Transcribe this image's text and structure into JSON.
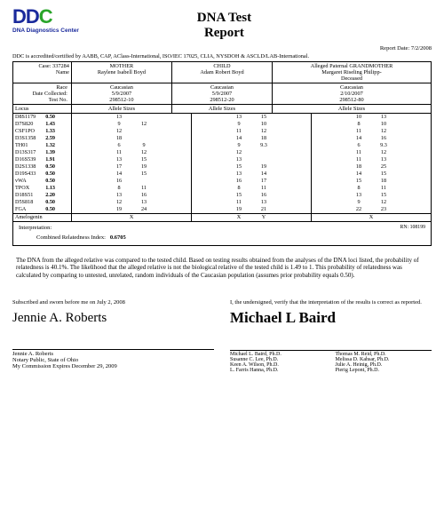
{
  "logo": {
    "d": "D",
    "c": "C",
    "sub": "DNA Diagnostics Center"
  },
  "title1": "DNA Test",
  "title2": "Report",
  "report_date_label": "Report Date:",
  "report_date": "7/2/2008",
  "accreditation": "DDC is accredited/certified by AABB, CAP, AClass-International, ISO/IEC 17025, CLIA, NYSDOH & ASCLD/LAB-International.",
  "case_label": "Case:",
  "case_no": "337284",
  "name_label": "Name",
  "parties": {
    "mother": {
      "role": "MOTHER",
      "name": "Raylene Isabell Boyd",
      "race": "Caucasian",
      "date": "5/9/2007",
      "test": "298512-10"
    },
    "child": {
      "role": "CHILD",
      "name": "Adam Robert Boyd",
      "race": "Caucasian",
      "date": "5/9/2007",
      "test": "298512-20"
    },
    "alleged": {
      "role": "Alleged Paternal GRANDMOTHER",
      "name": "Margaret Riseling Philipp-",
      "name2": "Deceased",
      "race": "Caucasian",
      "date": "2/10/2007",
      "test": "298512-80"
    }
  },
  "race_label": "Race",
  "date_label": "Date Collected:",
  "testno_label": "Test No.",
  "locus_label": "Locus",
  "allele_label": "Allele Sizes",
  "rows": [
    {
      "locus": "D8S1179",
      "pi": "0.50",
      "m": [
        "13",
        ""
      ],
      "c": [
        "13",
        "15"
      ],
      "a": [
        "10",
        "13"
      ]
    },
    {
      "locus": "D7S820",
      "pi": "1.43",
      "m": [
        "9",
        "12"
      ],
      "c": [
        "9",
        "10"
      ],
      "a": [
        "8",
        "10"
      ]
    },
    {
      "locus": "CSF1PO",
      "pi": "1.33",
      "m": [
        "12",
        ""
      ],
      "c": [
        "11",
        "12"
      ],
      "a": [
        "11",
        "12"
      ]
    },
    {
      "locus": "D3S1358",
      "pi": "2.59",
      "m": [
        "18",
        ""
      ],
      "c": [
        "14",
        "18"
      ],
      "a": [
        "14",
        "16"
      ]
    },
    {
      "locus": "TH01",
      "pi": "1.32",
      "m": [
        "6",
        "9"
      ],
      "c": [
        "9",
        "9.3"
      ],
      "a": [
        "6",
        "9.3"
      ]
    },
    {
      "locus": "D13S317",
      "pi": "1.39",
      "m": [
        "11",
        "12"
      ],
      "c": [
        "12",
        ""
      ],
      "a": [
        "11",
        "12"
      ]
    },
    {
      "locus": "D16S539",
      "pi": "1.91",
      "m": [
        "13",
        "15"
      ],
      "c": [
        "13",
        ""
      ],
      "a": [
        "11",
        "13"
      ]
    },
    {
      "locus": "D2S1338",
      "pi": "0.50",
      "m": [
        "17",
        "19"
      ],
      "c": [
        "15",
        "19"
      ],
      "a": [
        "18",
        "25"
      ]
    },
    {
      "locus": "D19S433",
      "pi": "0.50",
      "m": [
        "14",
        "15"
      ],
      "c": [
        "13",
        "14"
      ],
      "a": [
        "14",
        "15"
      ]
    },
    {
      "locus": "vWA",
      "pi": "0.50",
      "m": [
        "16",
        ""
      ],
      "c": [
        "16",
        "17"
      ],
      "a": [
        "15",
        "18"
      ]
    },
    {
      "locus": "TPOX",
      "pi": "1.13",
      "m": [
        "8",
        "11"
      ],
      "c": [
        "8",
        "11"
      ],
      "a": [
        "8",
        "11"
      ]
    },
    {
      "locus": "D18S51",
      "pi": "2.20",
      "m": [
        "13",
        "16"
      ],
      "c": [
        "15",
        "16"
      ],
      "a": [
        "13",
        "15"
      ]
    },
    {
      "locus": "D5S818",
      "pi": "0.50",
      "m": [
        "12",
        "13"
      ],
      "c": [
        "11",
        "13"
      ],
      "a": [
        "9",
        "12"
      ]
    },
    {
      "locus": "FGA",
      "pi": "0.50",
      "m": [
        "19",
        "24"
      ],
      "c": [
        "19",
        "21"
      ],
      "a": [
        "22",
        "23"
      ]
    }
  ],
  "amel": {
    "locus": "Amelogenin",
    "m": "X",
    "c": [
      "X",
      "Y"
    ],
    "a": "X"
  },
  "interp_label": "Interpretation:",
  "rn": "RN: 108199",
  "cri_label": "Combined Relatedness Index:",
  "cri_value": "0.6705",
  "narrative": "The DNA from the alleged relative was compared to the tested child.  Based on testing results obtained from the analyses of the DNA loci listed, the probability of relatedness is 40.1%.  The likelihood that the alleged relative is not the biological relative of the tested child is 1.49 to 1.  This probability of relatedness was calculated by comparing to untested, unrelated, random individuals of the Caucasian population (assumes prior probability equals 0.50).",
  "sworn": "Subscribed and sworn before me on July 2, 2008",
  "notary": {
    "sig": "Jennie A. Roberts",
    "name": "Jennie A. Roberts",
    "line2": "Notary Public, State of Ohio",
    "line3": "My Commission Expires December 29, 2009"
  },
  "verify": "I, the undersigned, verify that the interpretation of the results is correct as reported.",
  "director": {
    "sig": "Michael L Baird"
  },
  "phds": [
    "Michael L. Baird, Ph.D.",
    "Thomas M. Reid, Ph.D.",
    "Susanne C. Lee, Ph.D.",
    "Melissa D. Kahsar, Ph.D.",
    "Keen A. Wilson, Ph.D.",
    "Julie A. Heinig, Ph.D.",
    "L. Farris Hanna, Ph.D.",
    "Pierig Lepont, Ph.D."
  ]
}
